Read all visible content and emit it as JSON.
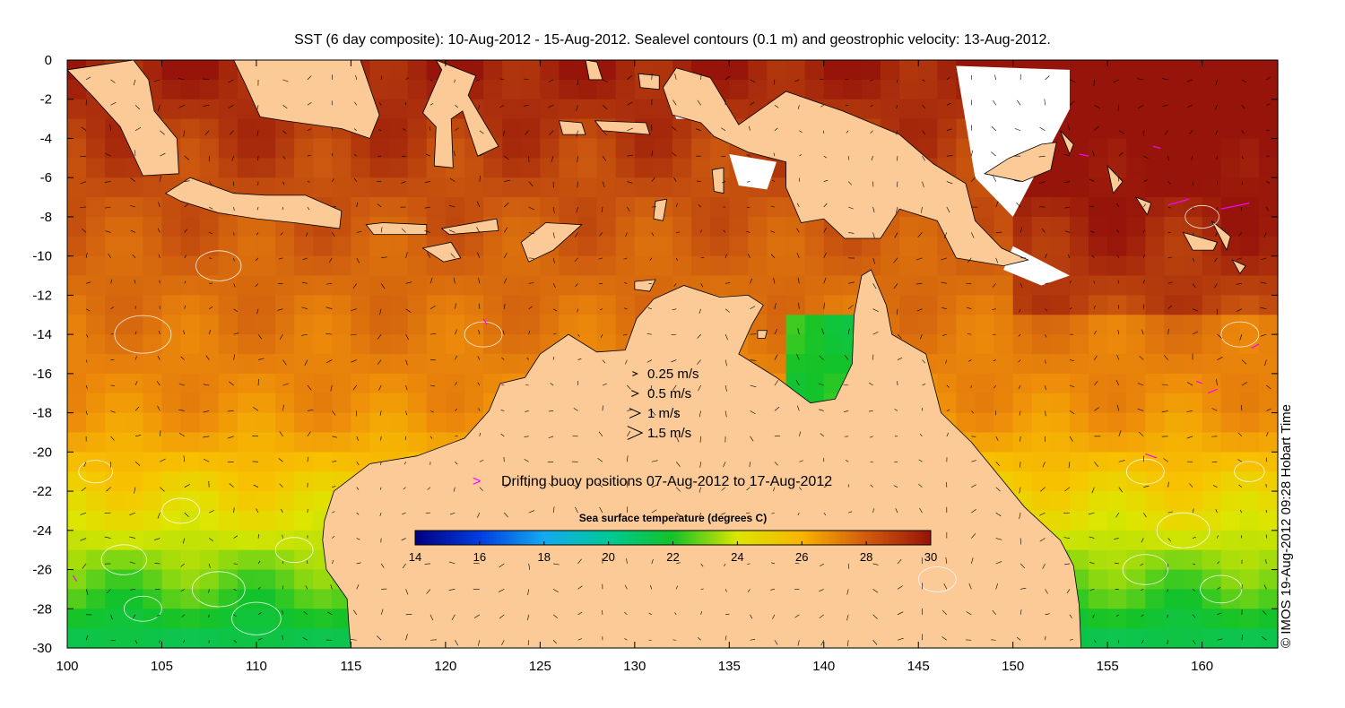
{
  "title": "SST (6 day composite): 10-Aug-2012 - 15-Aug-2012. Sealevel contours (0.1 m) and geostrophic velocity: 13-Aug-2012.",
  "credit": "© IMOS 19-Aug-2012 09:28 Hobart Time",
  "axes": {
    "x_ticks": [
      "100",
      "105",
      "110",
      "115",
      "120",
      "125",
      "130",
      "135",
      "140",
      "145",
      "150",
      "155",
      "160"
    ],
    "y_ticks": [
      "0",
      "-2",
      "-4",
      "-6",
      "-8",
      "-10",
      "-12",
      "-14",
      "-16",
      "-18",
      "-20",
      "-22",
      "-24",
      "-26",
      "-28",
      "-30"
    ],
    "x_range": [
      100,
      164
    ],
    "y_range": [
      -30,
      0
    ]
  },
  "velocity_legend": [
    {
      "label": "0.25 m/s",
      "speed": 0.25
    },
    {
      "label": "0.5 m/s",
      "speed": 0.5
    },
    {
      "label": "1 m/s",
      "speed": 1
    },
    {
      "label": "1.5 m/s",
      "speed": 1.5
    }
  ],
  "buoy_legend": {
    "label": "Drifting buoy positions 07-Aug-2012 to 17-Aug-2012",
    "marker": ">",
    "color": "#ff00ff"
  },
  "colorbar": {
    "title": "Sea surface temperature (degrees C)",
    "ticks": [
      "14",
      "16",
      "18",
      "20",
      "22",
      "24",
      "26",
      "28",
      "30"
    ],
    "min": 14,
    "max": 30
  },
  "colors": {
    "land": "#fcca96",
    "cloud": "#ffffff",
    "contour": "#ffffff",
    "arrow": "#000000",
    "buoy": "#ff00ff"
  }
}
